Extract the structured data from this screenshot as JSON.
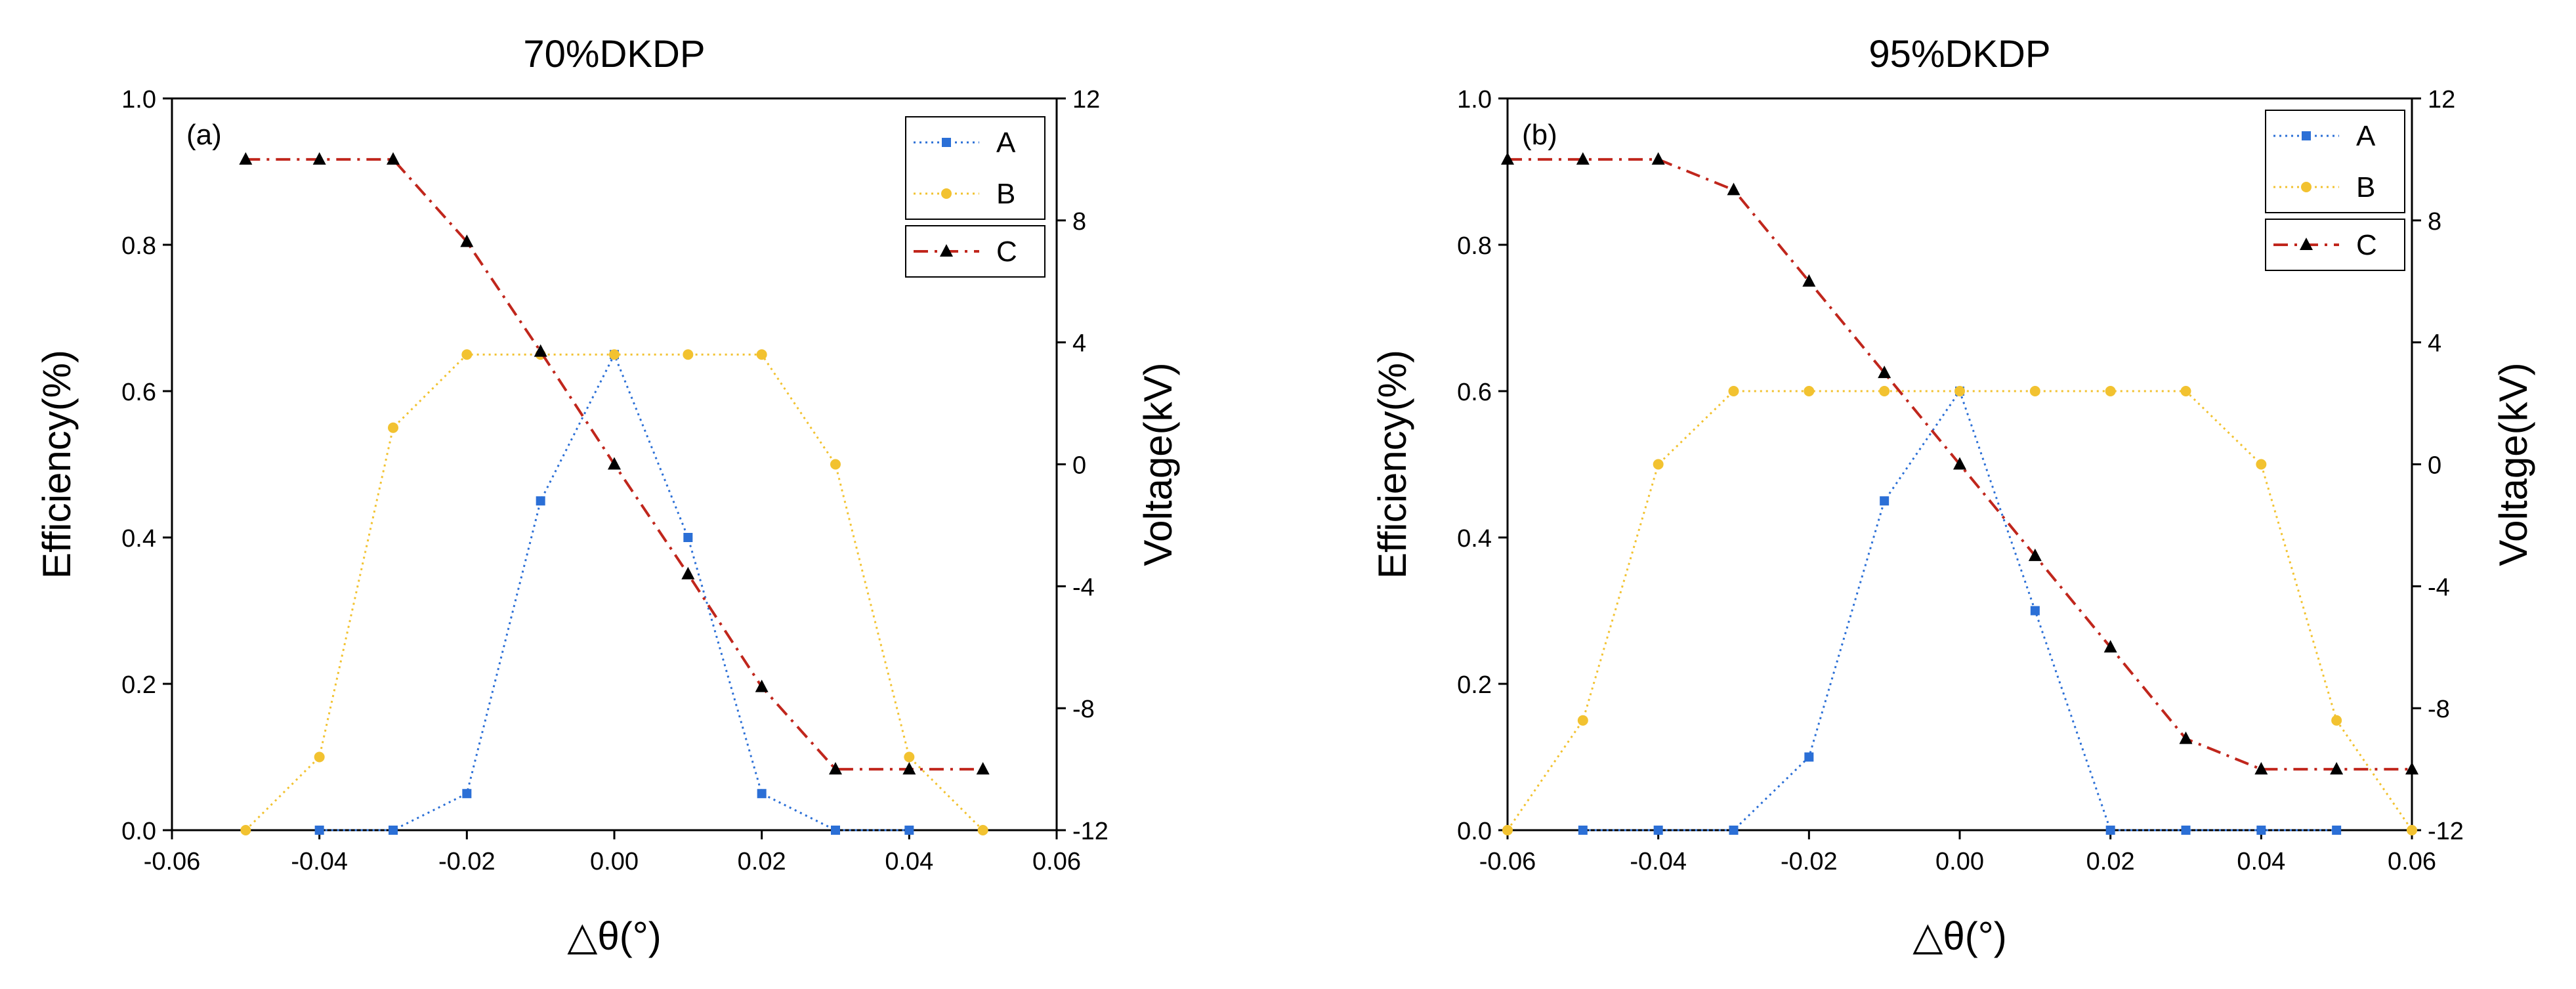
{
  "chart_data": [
    {
      "type": "line",
      "panel_label": "(a)",
      "title": "70%DKDP",
      "xlabel": "△θ(°)",
      "ylabel": "Efficiency(%)",
      "y2label": "Voltage(kV)",
      "xlim": [
        -0.06,
        0.06
      ],
      "ylim": [
        0.0,
        1.0
      ],
      "y2lim": [
        -12,
        12
      ],
      "xticks": [
        -0.06,
        -0.04,
        -0.02,
        0.0,
        0.02,
        0.04,
        0.06
      ],
      "xtick_labels": [
        "-0.06",
        "-0.04",
        "-0.02",
        "0.00",
        "0.02",
        "0.04",
        "0.06"
      ],
      "yticks": [
        0.0,
        0.2,
        0.4,
        0.6,
        0.8,
        1.0
      ],
      "ytick_labels": [
        "0.0",
        "0.2",
        "0.4",
        "0.6",
        "0.8",
        "1.0"
      ],
      "y2ticks": [
        -12,
        -8,
        -4,
        0,
        4,
        8,
        12
      ],
      "y2tick_labels": [
        "-12",
        "-8",
        "-4",
        "0",
        "4",
        "8",
        "12"
      ],
      "legend_position": "top-right",
      "series": [
        {
          "name": "A",
          "axis": "left",
          "color": "#2b6fd6",
          "marker": "square",
          "line": "dotted",
          "x": [
            -0.04,
            -0.03,
            -0.02,
            -0.01,
            0.0,
            0.01,
            0.02,
            0.03,
            0.04
          ],
          "y": [
            0.0,
            0.0,
            0.05,
            0.45,
            0.65,
            0.4,
            0.05,
            0.0,
            0.0
          ]
        },
        {
          "name": "B",
          "axis": "left",
          "color": "#f2c230",
          "marker": "circle",
          "line": "dotted",
          "x": [
            -0.05,
            -0.04,
            -0.03,
            -0.02,
            -0.01,
            0.0,
            0.01,
            0.02,
            0.03,
            0.04,
            0.05
          ],
          "y": [
            0.0,
            0.1,
            0.55,
            0.65,
            0.65,
            0.65,
            0.65,
            0.65,
            0.5,
            0.1,
            0.0
          ]
        },
        {
          "name": "C",
          "axis": "right",
          "color": "#c0261c",
          "marker": "triangle",
          "line": "dashdot",
          "x": [
            -0.05,
            -0.04,
            -0.03,
            -0.02,
            -0.01,
            0.0,
            0.01,
            0.02,
            0.03,
            0.04,
            0.05
          ],
          "y": [
            10,
            10,
            10,
            7.3,
            3.7,
            0,
            -3.6,
            -7.3,
            -10,
            -10,
            -10
          ]
        }
      ]
    },
    {
      "type": "line",
      "panel_label": "(b)",
      "title": "95%DKDP",
      "xlabel": "△θ(°)",
      "ylabel": "Efficiency(%)",
      "y2label": "Voltage(kV)",
      "xlim": [
        -0.06,
        0.06
      ],
      "ylim": [
        0.0,
        1.0
      ],
      "y2lim": [
        -12,
        12
      ],
      "xticks": [
        -0.06,
        -0.04,
        -0.02,
        0.0,
        0.02,
        0.04,
        0.06
      ],
      "xtick_labels": [
        "-0.06",
        "-0.04",
        "-0.02",
        "0.00",
        "0.02",
        "0.04",
        "0.06"
      ],
      "yticks": [
        0.0,
        0.2,
        0.4,
        0.6,
        0.8,
        1.0
      ],
      "ytick_labels": [
        "0.0",
        "0.2",
        "0.4",
        "0.6",
        "0.8",
        "1.0"
      ],
      "y2ticks": [
        -12,
        -8,
        -4,
        0,
        4,
        8,
        12
      ],
      "y2tick_labels": [
        "-12",
        "-8",
        "-4",
        "0",
        "4",
        "8",
        "12"
      ],
      "legend_position": "top-right",
      "series": [
        {
          "name": "A",
          "axis": "left",
          "color": "#2b6fd6",
          "marker": "square",
          "line": "dotted",
          "x": [
            -0.05,
            -0.04,
            -0.03,
            -0.02,
            -0.01,
            0.0,
            0.01,
            0.02,
            0.03,
            0.04,
            0.05
          ],
          "y": [
            0.0,
            0.0,
            0.0,
            0.1,
            0.45,
            0.6,
            0.3,
            0.0,
            0.0,
            0.0,
            0.0
          ]
        },
        {
          "name": "B",
          "axis": "left",
          "color": "#f2c230",
          "marker": "circle",
          "line": "dotted",
          "x": [
            -0.06,
            -0.05,
            -0.04,
            -0.03,
            -0.02,
            -0.01,
            0.0,
            0.01,
            0.02,
            0.03,
            0.04,
            0.05,
            0.06
          ],
          "y": [
            0.0,
            0.15,
            0.5,
            0.6,
            0.6,
            0.6,
            0.6,
            0.6,
            0.6,
            0.6,
            0.5,
            0.15,
            0.0
          ]
        },
        {
          "name": "C",
          "axis": "right",
          "color": "#c0261c",
          "marker": "triangle",
          "line": "dashdot",
          "x": [
            -0.06,
            -0.05,
            -0.04,
            -0.03,
            -0.02,
            -0.01,
            0.0,
            0.01,
            0.02,
            0.03,
            0.04,
            0.05,
            0.06
          ],
          "y": [
            10,
            10,
            10,
            9,
            6,
            3,
            0,
            -3,
            -6,
            -9,
            -10,
            -10,
            -10
          ]
        }
      ]
    }
  ]
}
